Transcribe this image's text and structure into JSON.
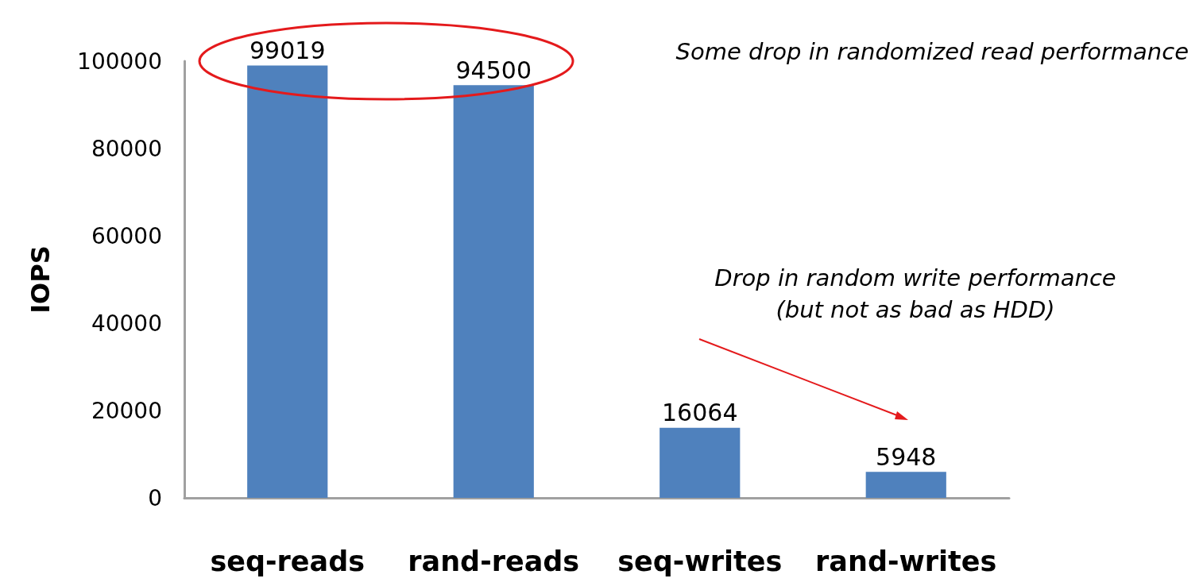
{
  "chart_data": {
    "type": "bar",
    "ylabel": "IOPS",
    "categories": [
      "seq-reads",
      "rand-reads",
      "seq-writes",
      "rand-writes"
    ],
    "values": [
      99019,
      94500,
      16064,
      5948
    ],
    "color": "#4f81bd",
    "ylim": [
      0,
      100000
    ],
    "yticks": [
      0,
      20000,
      40000,
      60000,
      80000,
      100000
    ],
    "grid": false,
    "data_labels": true,
    "annotations": [
      "Some drop in randomized read performance",
      "Drop in random write performance\n(but not as bad as HDD)"
    ]
  }
}
